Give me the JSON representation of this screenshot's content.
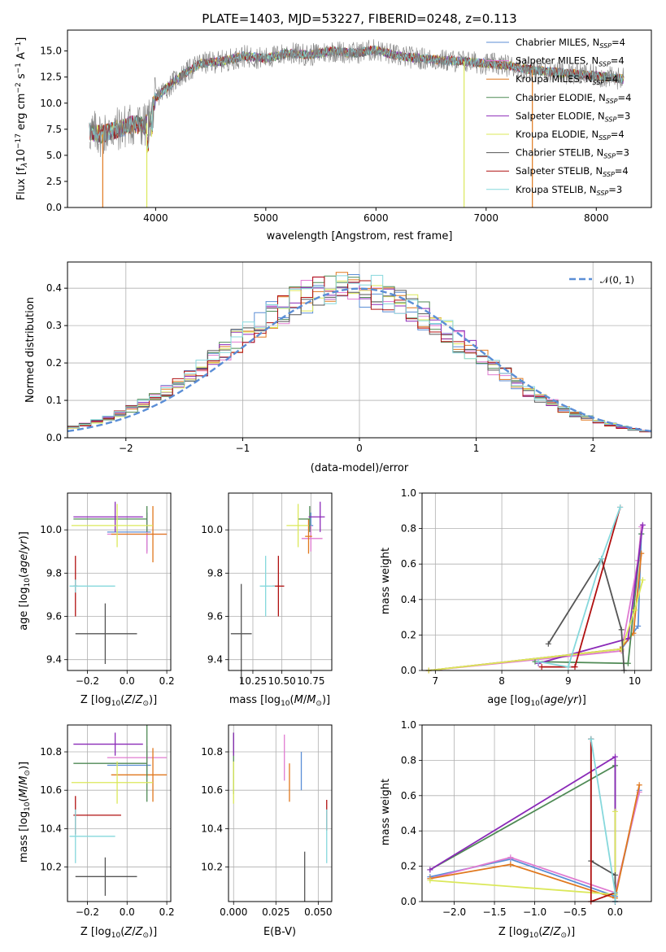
{
  "title": "PLATE=1403, MJD=53227, FIBERID=0248, z=0.113",
  "colors": {
    "Chabrier MILES": "#5b8ed6",
    "Salpeter MILES": "#e07bd1",
    "Kroupa MILES": "#e0781e",
    "Chabrier ELODIE": "#4f8a55",
    "Salpeter ELODIE": "#8b2ab8",
    "Kroupa ELODIE": "#dbe85a",
    "Chabrier STELIB": "#555555",
    "Salpeter STELIB": "#b01010",
    "Kroupa STELIB": "#86d8dc",
    "data": "#808080"
  },
  "chart_data": [
    {
      "id": "spectrum",
      "type": "line",
      "title": "PLATE=1403, MJD=53227, FIBERID=0248, z=0.113",
      "xlabel": "wavelength [Angstrom, rest frame]",
      "ylabel": "Flux [f_λ 10^-17 erg cm^-2 s^-1 A^-1]",
      "xlim": [
        3200,
        8500
      ],
      "ylim": [
        0,
        17
      ],
      "xticks": [
        "4000",
        "5000",
        "6000",
        "7000",
        "8000"
      ],
      "yticks": [
        "0.0",
        "2.5",
        "5.0",
        "7.5",
        "10.0",
        "12.5",
        "15.0"
      ],
      "legend": [
        "Chabrier MILES, N_SSP=4",
        "Salpeter MILES, N_SSP=4",
        "Kroupa MILES, N_SSP=4",
        "Chabrier ELODIE, N_SSP=4",
        "Salpeter ELODIE, N_SSP=3",
        "Kroupa ELODIE, N_SSP=4",
        "Chabrier STELIB, N_SSP=3",
        "Salpeter STELIB, N_SSP=4",
        "Kroupa STELIB, N_SSP=3"
      ],
      "legend_placement": "right",
      "continuum": {
        "x": [
          3400,
          3500,
          3650,
          3800,
          3900,
          3950,
          4000,
          4200,
          4400,
          4600,
          4800,
          5000,
          5200,
          5400,
          5600,
          5800,
          6000,
          6200,
          6400,
          6600,
          6800,
          7000,
          7200,
          7400,
          7600,
          7800,
          8000,
          8250
        ],
        "y": [
          7.3,
          7.0,
          7.5,
          8.0,
          7.8,
          8.5,
          10.5,
          12.4,
          13.8,
          14.0,
          14.5,
          14.3,
          14.8,
          14.6,
          15.0,
          14.8,
          15.1,
          14.5,
          14.3,
          14.1,
          14.0,
          13.8,
          13.6,
          13.2,
          13.0,
          12.8,
          12.6,
          12.3
        ]
      }
    },
    {
      "id": "residuals",
      "type": "bar",
      "xlabel": "(data-model)/error",
      "ylabel": "Normed distribution",
      "xlim": [
        -2.5,
        2.5
      ],
      "ylim": [
        0,
        0.47
      ],
      "xticks": [
        "−2",
        "−1",
        "0",
        "1",
        "2"
      ],
      "yticks": [
        "0.0",
        "0.1",
        "0.2",
        "0.3",
        "0.4"
      ],
      "legend": [
        "𝒩(0, 1)"
      ],
      "legend_placement": "top-right",
      "bin_width": 0.1
    },
    {
      "id": "age-vs-Z",
      "type": "scatter",
      "xlabel": "Z [log10(Z/Z⊙)]",
      "ylabel": "age  [log10(age/yr)]",
      "xlim": [
        -0.3,
        0.22
      ],
      "ylim": [
        9.35,
        10.17
      ],
      "xticks": [
        "−0.2",
        "0.0",
        "0.2"
      ],
      "yticks": [
        "9.4",
        "9.6",
        "9.8",
        "10.0"
      ],
      "points": [
        {
          "model": "Chabrier MILES",
          "x": 0.1,
          "y": 9.99,
          "xerr": [
            0.2,
            0.02
          ],
          "yerr": 0.09
        },
        {
          "model": "Salpeter MILES",
          "x": 0.1,
          "y": 9.98,
          "xerr": [
            0.2,
            0.1
          ],
          "yerr": 0.09
        },
        {
          "model": "Kroupa MILES",
          "x": 0.13,
          "y": 9.98,
          "xerr": [
            0.21,
            0.07
          ],
          "yerr": 0.13
        },
        {
          "model": "Chabrier ELODIE",
          "x": 0.1,
          "y": 10.05,
          "xerr": [
            0.37,
            0.0
          ],
          "yerr": 0.06
        },
        {
          "model": "Salpeter ELODIE",
          "x": -0.06,
          "y": 10.06,
          "xerr": [
            0.21,
            0.14
          ],
          "yerr": 0.07
        },
        {
          "model": "Kroupa ELODIE",
          "x": -0.05,
          "y": 10.02,
          "xerr": [
            0.23,
            0.18
          ],
          "yerr": 0.1
        },
        {
          "model": "Chabrier STELIB",
          "x": -0.11,
          "y": 9.52,
          "xerr": [
            0.15,
            0.16
          ],
          "yerr": 0.14
        },
        {
          "model": "Salpeter STELIB",
          "x": -0.26,
          "y": 9.74,
          "xerr": [
            0.01,
            0.01
          ],
          "yerr": 0.14
        },
        {
          "model": "Kroupa STELIB",
          "x": -0.26,
          "y": 9.74,
          "xerr": [
            0.03,
            0.2
          ],
          "yerr": 0.03
        }
      ]
    },
    {
      "id": "age-vs-mass",
      "type": "scatter",
      "xlabel": "mass [log10(M/M⊙)]",
      "xlim": [
        10.04,
        10.93
      ],
      "ylim": [
        9.35,
        10.17
      ],
      "xticks": [
        "10.25",
        "10.50",
        "10.75"
      ],
      "yticks": [
        "9.4",
        "9.6",
        "9.8",
        "10.0"
      ],
      "points": [
        {
          "model": "Chabrier MILES",
          "x": 10.75,
          "y": 10.02,
          "xerr": [
            0.02,
            0.02
          ],
          "yerr": 0.06
        },
        {
          "model": "Salpeter MILES",
          "x": 10.75,
          "y": 9.96,
          "xerr": [
            0.08,
            0.1
          ],
          "yerr": 0.06
        },
        {
          "model": "Kroupa MILES",
          "x": 10.73,
          "y": 9.97,
          "xerr": [
            0.03,
            0.03
          ],
          "yerr": 0.08
        },
        {
          "model": "Chabrier ELODIE",
          "x": 10.74,
          "y": 10.05,
          "xerr": [
            0.1,
            0.0
          ],
          "yerr": 0.06
        },
        {
          "model": "Salpeter ELODIE",
          "x": 10.83,
          "y": 10.06,
          "xerr": [
            0.1,
            0.04
          ],
          "yerr": 0.07
        },
        {
          "model": "Kroupa ELODIE",
          "x": 10.64,
          "y": 10.02,
          "xerr": [
            0.1,
            0.09
          ],
          "yerr": 0.1
        },
        {
          "model": "Chabrier STELIB",
          "x": 10.15,
          "y": 9.52,
          "xerr": [
            0.09,
            0.09
          ],
          "yerr": 0.23
        },
        {
          "model": "Salpeter STELIB",
          "x": 10.47,
          "y": 9.74,
          "xerr": [
            0.05,
            0.05
          ],
          "yerr": 0.14
        },
        {
          "model": "Kroupa STELIB",
          "x": 10.36,
          "y": 9.74,
          "xerr": [
            0.05,
            0.08
          ],
          "yerr": 0.14
        }
      ]
    },
    {
      "id": "weight-vs-age",
      "type": "line",
      "xlabel": "age  [log10(age/yr)]",
      "ylabel": "mass weight",
      "xlim": [
        6.8,
        10.25
      ],
      "ylim": [
        0,
        1
      ],
      "xticks": [
        "7",
        "8",
        "9",
        "10"
      ],
      "yticks": [
        "0.0",
        "0.2",
        "0.4",
        "0.6",
        "0.8",
        "1.0"
      ],
      "series": [
        {
          "model": "Chabrier MILES",
          "x": [
            6.9,
            9.8,
            10.05,
            10.1
          ],
          "y": [
            0.0,
            0.12,
            0.25,
            0.77
          ]
        },
        {
          "model": "Salpeter MILES",
          "x": [
            6.9,
            9.8,
            10.05,
            10.1
          ],
          "y": [
            0.0,
            0.11,
            0.62,
            0.81
          ]
        },
        {
          "model": "Kroupa MILES",
          "x": [
            6.9,
            9.78,
            9.98,
            10.1
          ],
          "y": [
            0.0,
            0.12,
            0.21,
            0.66
          ]
        },
        {
          "model": "Chabrier ELODIE",
          "x": [
            8.5,
            9.9,
            10.1
          ],
          "y": [
            0.05,
            0.04,
            0.77
          ]
        },
        {
          "model": "Salpeter ELODIE",
          "x": [
            8.55,
            9.9,
            10.12
          ],
          "y": [
            0.04,
            0.18,
            0.82
          ]
        },
        {
          "model": "Kroupa ELODIE",
          "x": [
            6.9,
            9.8,
            10.0,
            10.12
          ],
          "y": [
            0.0,
            0.12,
            0.34,
            0.51
          ]
        },
        {
          "model": "Chabrier STELIB",
          "x": [
            8.7,
            9.5,
            9.8,
            9.84
          ],
          "y": [
            0.15,
            0.63,
            0.23,
            0.0
          ]
        },
        {
          "model": "Salpeter STELIB",
          "x": [
            8.6,
            9.1,
            9.78
          ],
          "y": [
            0.02,
            0.02,
            0.92
          ]
        },
        {
          "model": "Kroupa STELIB",
          "x": [
            8.55,
            9.0,
            9.5,
            9.78
          ],
          "y": [
            0.05,
            0.02,
            0.63,
            0.92
          ]
        }
      ]
    },
    {
      "id": "mass-vs-Z",
      "type": "scatter",
      "xlabel": "Z [log10(Z/Z⊙)]",
      "ylabel": "mass [log10(M/M⊙)]",
      "xlim": [
        -0.3,
        0.22
      ],
      "ylim": [
        10.02,
        10.94
      ],
      "xticks": [
        "−0.2",
        "0.0",
        "0.2"
      ],
      "yticks": [
        "10.2",
        "10.4",
        "10.6",
        "10.8"
      ],
      "points": [
        {
          "model": "Chabrier MILES",
          "x": 0.1,
          "y": 10.73,
          "xerr": [
            0.2,
            0.02
          ],
          "yerr": 0.06
        },
        {
          "model": "Salpeter MILES",
          "x": 0.1,
          "y": 10.77,
          "xerr": [
            0.2,
            0.1
          ],
          "yerr": 0.06
        },
        {
          "model": "Kroupa MILES",
          "x": 0.13,
          "y": 10.68,
          "xerr": [
            0.21,
            0.07
          ],
          "yerr": 0.14
        },
        {
          "model": "Chabrier ELODIE",
          "x": 0.1,
          "y": 10.74,
          "xerr": [
            0.37,
            0.0
          ],
          "yerr": 0.2
        },
        {
          "model": "Salpeter ELODIE",
          "x": -0.06,
          "y": 10.84,
          "xerr": [
            0.21,
            0.14
          ],
          "yerr": 0.06
        },
        {
          "model": "Kroupa ELODIE",
          "x": -0.05,
          "y": 10.64,
          "xerr": [
            0.23,
            0.18
          ],
          "yerr": 0.11
        },
        {
          "model": "Chabrier STELIB",
          "x": -0.11,
          "y": 10.15,
          "xerr": [
            0.15,
            0.16
          ],
          "yerr": 0.1
        },
        {
          "model": "Salpeter STELIB",
          "x": -0.26,
          "y": 10.47,
          "xerr": [
            0.01,
            0.23
          ],
          "yerr": 0.1
        },
        {
          "model": "Kroupa STELIB",
          "x": -0.26,
          "y": 10.36,
          "xerr": [
            0.03,
            0.2
          ],
          "yerr": 0.14
        }
      ]
    },
    {
      "id": "mass-vs-ebv",
      "type": "scatter",
      "xlabel": "E(B-V)",
      "xlim": [
        -0.003,
        0.058
      ],
      "ylim": [
        10.02,
        10.94
      ],
      "xticks": [
        "0.000",
        "0.025",
        "0.050"
      ],
      "yticks": [
        "10.2",
        "10.4",
        "10.6",
        "10.8"
      ],
      "points": [
        {
          "model": "Chabrier MILES",
          "x": 0.04,
          "y": 10.7,
          "yerr": 0.1
        },
        {
          "model": "Salpeter MILES",
          "x": 0.03,
          "y": 10.77,
          "yerr": 0.12
        },
        {
          "model": "Kroupa MILES",
          "x": 0.033,
          "y": 10.64,
          "yerr": 0.1
        },
        {
          "model": "Chabrier ELODIE",
          "x": 0.0,
          "y": 10.74,
          "yerr": 0.16
        },
        {
          "model": "Salpeter ELODIE",
          "x": 0.0,
          "y": 10.84,
          "yerr": 0.06
        },
        {
          "model": "Kroupa ELODIE",
          "x": 0.0,
          "y": 10.64,
          "yerr": 0.11
        },
        {
          "model": "Chabrier STELIB",
          "x": 0.042,
          "y": 10.15,
          "yerr": 0.13
        },
        {
          "model": "Salpeter STELIB",
          "x": 0.055,
          "y": 10.47,
          "yerr": 0.08
        },
        {
          "model": "Kroupa STELIB",
          "x": 0.055,
          "y": 10.36,
          "yerr": 0.14
        }
      ]
    },
    {
      "id": "weight-vs-Z",
      "type": "line",
      "xlabel": "Z [log10(Z/Z⊙)]",
      "ylabel": "mass weight",
      "xlim": [
        -2.4,
        0.45
      ],
      "ylim": [
        0,
        1
      ],
      "xticks": [
        "−2.0",
        "−1.5",
        "−1.0",
        "−0.5",
        "0.0"
      ],
      "yticks": [
        "0.0",
        "0.2",
        "0.4",
        "0.6",
        "0.8",
        "1.0"
      ],
      "series": [
        {
          "model": "Chabrier MILES",
          "x": [
            -2.3,
            -1.3,
            0.0,
            0.3
          ],
          "y": [
            0.14,
            0.24,
            0.03,
            0.63
          ]
        },
        {
          "model": "Salpeter MILES",
          "x": [
            -2.3,
            -1.3,
            0.0,
            0.3
          ],
          "y": [
            0.13,
            0.25,
            0.05,
            0.62
          ]
        },
        {
          "model": "Kroupa MILES",
          "x": [
            -2.3,
            -1.3,
            0.0,
            0.3
          ],
          "y": [
            0.13,
            0.21,
            0.02,
            0.66
          ]
        },
        {
          "model": "Chabrier ELODIE",
          "x": [
            -2.3,
            0.0,
            0.0
          ],
          "y": [
            0.18,
            0.77,
            0.05
          ]
        },
        {
          "model": "Salpeter ELODIE",
          "x": [
            -2.3,
            0.0,
            0.0
          ],
          "y": [
            0.18,
            0.82,
            0.0
          ]
        },
        {
          "model": "Kroupa ELODIE",
          "x": [
            -2.3,
            0.0,
            0.0
          ],
          "y": [
            0.12,
            0.04,
            0.51
          ]
        },
        {
          "model": "Chabrier STELIB",
          "x": [
            -0.3,
            -0.3,
            0.0,
            0.0
          ],
          "y": [
            0.92,
            0.23,
            0.15,
            0.0
          ]
        },
        {
          "model": "Salpeter STELIB",
          "x": [
            -0.3,
            -0.3,
            0.0
          ],
          "y": [
            0.92,
            0.0,
            0.05
          ]
        },
        {
          "model": "Kroupa STELIB",
          "x": [
            -0.3,
            0.0,
            0.0
          ],
          "y": [
            0.92,
            0.05,
            0.0
          ]
        }
      ]
    }
  ]
}
